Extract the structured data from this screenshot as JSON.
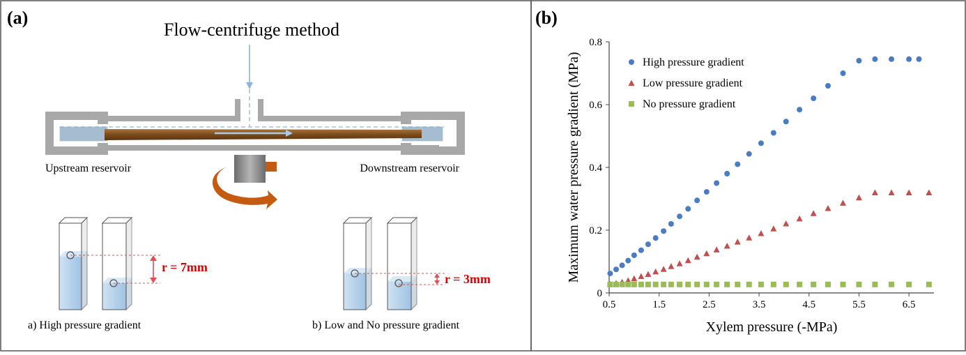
{
  "panel_a": {
    "label": "(a)",
    "title": "Flow-centrifuge method",
    "upstream_label": "Upstream reservoir",
    "downstream_label": "Downstream reservoir",
    "left_r_label": "r = 7mm",
    "right_r_label": "r = 3mm",
    "left_caption": "a) High pressure gradient",
    "right_caption": "b) Low and No pressure gradient"
  },
  "panel_b": {
    "label": "(b)"
  },
  "chart_data": {
    "type": "scatter",
    "title": "",
    "xlabel": "Xylem pressure (-MPa)",
    "ylabel": "Maximum water pressure gradient (MPa)",
    "xlim": [
      0.5,
      7.0
    ],
    "ylim": [
      0,
      0.8
    ],
    "x_ticks": [
      "0.5",
      "1.5",
      "2.5",
      "3.5",
      "4.5",
      "5.5",
      "6.5"
    ],
    "x_tick_values": [
      0.5,
      1.5,
      2.5,
      3.5,
      4.5,
      5.5,
      6.5
    ],
    "y_ticks": [
      "0",
      "0.2",
      "0.4",
      "0.6",
      "0.8"
    ],
    "y_tick_values": [
      0,
      0.2,
      0.4,
      0.6,
      0.8
    ],
    "grid": false,
    "legend_position": "top-left",
    "series": [
      {
        "name": "High pressure gradient",
        "marker": "circle",
        "color": "#4a7cc4",
        "x": [
          0.52,
          0.64,
          0.76,
          0.88,
          1.0,
          1.14,
          1.28,
          1.43,
          1.59,
          1.74,
          1.91,
          2.08,
          2.26,
          2.45,
          2.65,
          2.86,
          3.07,
          3.3,
          3.54,
          3.79,
          4.04,
          4.31,
          4.59,
          4.88,
          5.18,
          5.5,
          5.82,
          6.15,
          6.5,
          6.7
        ],
        "y": [
          0.062,
          0.075,
          0.088,
          0.103,
          0.12,
          0.136,
          0.155,
          0.175,
          0.197,
          0.22,
          0.244,
          0.268,
          0.295,
          0.322,
          0.35,
          0.38,
          0.41,
          0.443,
          0.477,
          0.51,
          0.546,
          0.584,
          0.62,
          0.66,
          0.7,
          0.74,
          0.745,
          0.745,
          0.745,
          0.745
        ]
      },
      {
        "name": "Low pressure gradient",
        "marker": "triangle",
        "color": "#c0504d",
        "x": [
          0.52,
          0.64,
          0.76,
          0.88,
          1.0,
          1.14,
          1.28,
          1.43,
          1.59,
          1.74,
          1.91,
          2.08,
          2.26,
          2.45,
          2.65,
          2.86,
          3.07,
          3.3,
          3.54,
          3.79,
          4.04,
          4.31,
          4.59,
          4.88,
          5.18,
          5.5,
          5.82,
          6.15,
          6.5,
          6.9
        ],
        "y": [
          0.028,
          0.031,
          0.035,
          0.04,
          0.046,
          0.053,
          0.06,
          0.068,
          0.076,
          0.085,
          0.094,
          0.104,
          0.115,
          0.126,
          0.138,
          0.15,
          0.163,
          0.176,
          0.19,
          0.205,
          0.221,
          0.237,
          0.254,
          0.27,
          0.287,
          0.304,
          0.32,
          0.32,
          0.32,
          0.32
        ]
      },
      {
        "name": "No pressure gradient",
        "marker": "square",
        "color": "#9bbb59",
        "x": [
          0.52,
          0.64,
          0.76,
          0.88,
          1.0,
          1.14,
          1.28,
          1.43,
          1.59,
          1.74,
          1.91,
          2.08,
          2.26,
          2.45,
          2.65,
          2.86,
          3.07,
          3.3,
          3.54,
          3.79,
          4.04,
          4.31,
          4.59,
          4.88,
          5.18,
          5.5,
          5.82,
          6.15,
          6.5,
          6.9
        ],
        "y": [
          0.027,
          0.027,
          0.027,
          0.027,
          0.027,
          0.027,
          0.027,
          0.027,
          0.027,
          0.027,
          0.027,
          0.027,
          0.027,
          0.027,
          0.027,
          0.027,
          0.027,
          0.027,
          0.027,
          0.027,
          0.027,
          0.027,
          0.027,
          0.027,
          0.027,
          0.027,
          0.027,
          0.027,
          0.027,
          0.027
        ]
      }
    ]
  }
}
